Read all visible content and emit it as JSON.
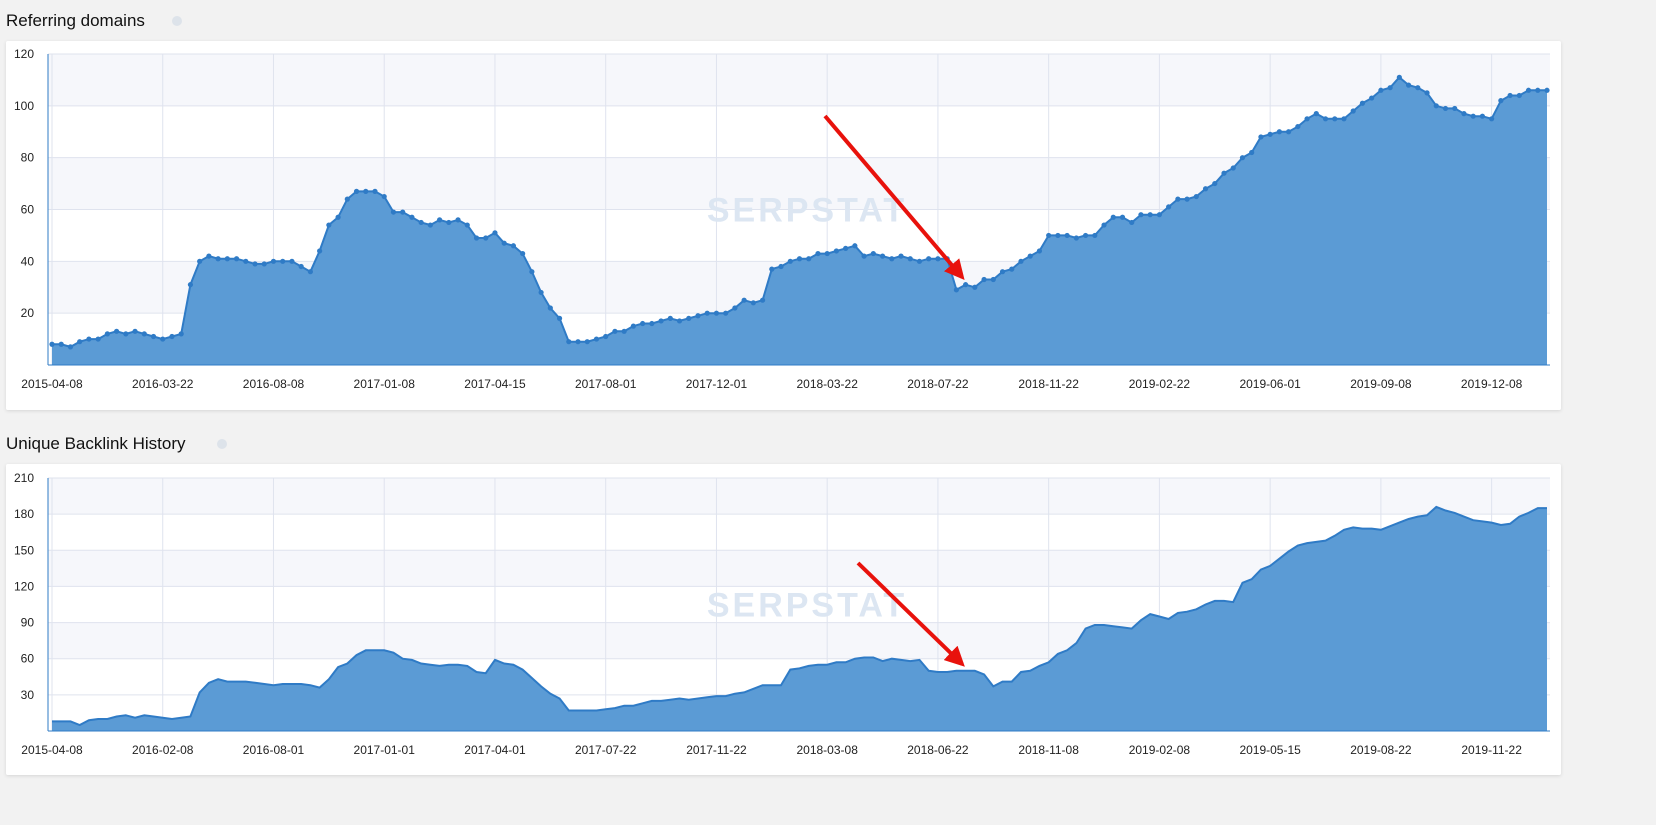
{
  "chart_data": [
    {
      "type": "area",
      "title": "Referring domains",
      "watermark": "SERPSTAT",
      "color": "#5b9bd5",
      "line_color": "#2f7bc6",
      "markers": true,
      "grid": true,
      "categories": [
        "2015-04-08",
        null,
        null,
        null,
        null,
        null,
        null,
        null,
        null,
        null,
        null,
        null,
        "2016-03-22",
        null,
        null,
        null,
        null,
        null,
        null,
        null,
        null,
        null,
        null,
        null,
        "2016-08-08",
        null,
        null,
        null,
        null,
        null,
        null,
        null,
        null,
        null,
        null,
        null,
        "2017-01-08",
        null,
        null,
        null,
        null,
        null,
        null,
        null,
        null,
        null,
        null,
        null,
        "2017-04-15",
        null,
        null,
        null,
        null,
        null,
        null,
        null,
        null,
        null,
        null,
        null,
        "2017-08-01",
        null,
        null,
        null,
        null,
        null,
        null,
        null,
        null,
        null,
        null,
        null,
        "2017-12-01",
        null,
        null,
        null,
        null,
        null,
        null,
        null,
        null,
        null,
        null,
        null,
        "2018-03-22",
        null,
        null,
        null,
        null,
        null,
        null,
        null,
        null,
        null,
        null,
        null,
        "2018-07-22",
        null,
        null,
        null,
        null,
        null,
        null,
        null,
        null,
        null,
        null,
        null,
        "2018-11-22",
        null,
        null,
        null,
        null,
        null,
        null,
        null,
        null,
        null,
        null,
        null,
        "2019-02-22",
        null,
        null,
        null,
        null,
        null,
        null,
        null,
        null,
        null,
        null,
        null,
        "2019-06-01",
        null,
        null,
        null,
        null,
        null,
        null,
        null,
        null,
        null,
        null,
        null,
        "2019-09-08",
        null,
        null,
        null,
        null,
        null,
        null,
        null,
        null,
        null,
        null,
        null,
        "2019-12-08",
        null,
        null,
        null,
        null,
        null,
        null
      ],
      "values": [
        8,
        8,
        7,
        9,
        10,
        10,
        12,
        13,
        12,
        13,
        12,
        11,
        10,
        11,
        12,
        31,
        40,
        42,
        41,
        41,
        41,
        40,
        39,
        39,
        40,
        40,
        40,
        38,
        36,
        44,
        54,
        57,
        64,
        67,
        67,
        67,
        65,
        59,
        59,
        57,
        55,
        54,
        56,
        55,
        56,
        54,
        49,
        49,
        51,
        47,
        46,
        43,
        36,
        28,
        22,
        18,
        9,
        9,
        9,
        10,
        11,
        13,
        13,
        15,
        16,
        16,
        17,
        18,
        17,
        18,
        19,
        20,
        20,
        20,
        22,
        25,
        24,
        25,
        37,
        38,
        40,
        41,
        41,
        43,
        43,
        44,
        45,
        46,
        42,
        43,
        42,
        41,
        42,
        41,
        40,
        41,
        41,
        41,
        29,
        31,
        30,
        33,
        33,
        36,
        37,
        40,
        42,
        44,
        50,
        50,
        50,
        49,
        50,
        50,
        54,
        57,
        57,
        55,
        58,
        58,
        58,
        61,
        64,
        64,
        65,
        68,
        70,
        74,
        76,
        80,
        82,
        88,
        89,
        90,
        90,
        92,
        95,
        97,
        95,
        95,
        95,
        98,
        101,
        103,
        106,
        107,
        111,
        108,
        107,
        105,
        100,
        99,
        99,
        97,
        96,
        96,
        95,
        102,
        104,
        104,
        106,
        106,
        106
      ],
      "ylim": [
        0,
        120
      ],
      "yticks": [
        20,
        40,
        60,
        80,
        100,
        120
      ]
    },
    {
      "type": "area",
      "title": "Unique Backlink History",
      "watermark": "SERPSTAT",
      "color": "#5b9bd5",
      "line_color": "#2f7bc6",
      "markers": false,
      "grid": true,
      "categories": [
        "2015-04-08",
        null,
        null,
        null,
        null,
        null,
        null,
        null,
        null,
        null,
        null,
        null,
        "2016-02-08",
        null,
        null,
        null,
        null,
        null,
        null,
        null,
        null,
        null,
        null,
        null,
        "2016-08-01",
        null,
        null,
        null,
        null,
        null,
        null,
        null,
        null,
        null,
        null,
        null,
        "2017-01-01",
        null,
        null,
        null,
        null,
        null,
        null,
        null,
        null,
        null,
        null,
        null,
        "2017-04-01",
        null,
        null,
        null,
        null,
        null,
        null,
        null,
        null,
        null,
        null,
        null,
        "2017-07-22",
        null,
        null,
        null,
        null,
        null,
        null,
        null,
        null,
        null,
        null,
        null,
        "2017-11-22",
        null,
        null,
        null,
        null,
        null,
        null,
        null,
        null,
        null,
        null,
        null,
        "2018-03-08",
        null,
        null,
        null,
        null,
        null,
        null,
        null,
        null,
        null,
        null,
        null,
        "2018-06-22",
        null,
        null,
        null,
        null,
        null,
        null,
        null,
        null,
        null,
        null,
        null,
        "2018-11-08",
        null,
        null,
        null,
        null,
        null,
        null,
        null,
        null,
        null,
        null,
        null,
        "2019-02-08",
        null,
        null,
        null,
        null,
        null,
        null,
        null,
        null,
        null,
        null,
        null,
        "2019-05-15",
        null,
        null,
        null,
        null,
        null,
        null,
        null,
        null,
        null,
        null,
        null,
        "2019-08-22",
        null,
        null,
        null,
        null,
        null,
        null,
        null,
        null,
        null,
        null,
        null,
        "2019-11-22",
        null,
        null,
        null,
        null,
        null,
        null
      ],
      "values": [
        8,
        8,
        8,
        5,
        9,
        10,
        10,
        12,
        13,
        11,
        13,
        12,
        11,
        10,
        11,
        12,
        32,
        40,
        43,
        41,
        41,
        41,
        40,
        39,
        38,
        39,
        39,
        39,
        38,
        36,
        43,
        53,
        56,
        63,
        67,
        67,
        67,
        65,
        60,
        59,
        56,
        55,
        54,
        55,
        55,
        54,
        49,
        48,
        59,
        56,
        55,
        51,
        44,
        37,
        31,
        27,
        17,
        17,
        17,
        17,
        18,
        19,
        21,
        21,
        23,
        25,
        25,
        26,
        27,
        26,
        27,
        28,
        29,
        29,
        31,
        32,
        35,
        38,
        38,
        38,
        51,
        52,
        54,
        55,
        55,
        57,
        57,
        60,
        61,
        61,
        58,
        60,
        59,
        58,
        59,
        50,
        49,
        49,
        50,
        50,
        50,
        47,
        37,
        41,
        41,
        49,
        50,
        54,
        57,
        64,
        67,
        73,
        85,
        88,
        88,
        87,
        86,
        85,
        92,
        97,
        95,
        93,
        98,
        99,
        101,
        105,
        108,
        108,
        107,
        123,
        126,
        134,
        137,
        143,
        149,
        154,
        156,
        157,
        158,
        162,
        167,
        169,
        168,
        168,
        167,
        170,
        173,
        176,
        178,
        179,
        186,
        183,
        181,
        178,
        175,
        174,
        173,
        171,
        172,
        178,
        181,
        185,
        185
      ],
      "ylim": [
        0,
        210
      ],
      "yticks": [
        30,
        60,
        90,
        120,
        150,
        180,
        210
      ]
    }
  ]
}
